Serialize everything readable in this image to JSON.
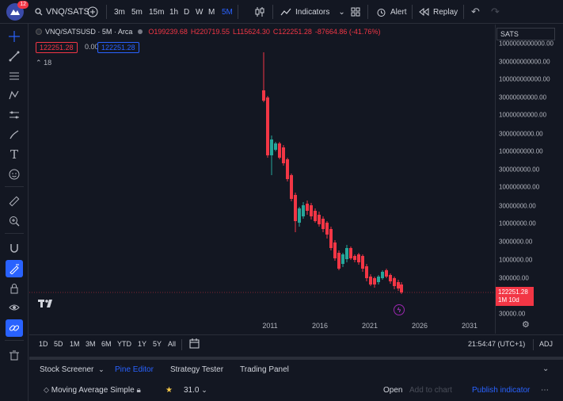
{
  "toolbar": {
    "notifications": "12",
    "symbol": "VNQ/SATS",
    "timeframes": [
      "3m",
      "5m",
      "15m",
      "1h",
      "D",
      "W",
      "M",
      "5M"
    ],
    "active_timeframe": "5M",
    "indicators_label": "Indicators",
    "alert_label": "Alert",
    "replay_label": "Replay"
  },
  "legend": {
    "title": "VNQ/SATSUSD · 5M · Arca",
    "open": "O199239.68",
    "high": "H220719.55",
    "low": "L115624.30",
    "close": "C122251.28",
    "change": "-87664.86 (-41.76%)",
    "sell_price": "122251.28",
    "spread": "0.00",
    "buy_price": "122251.28",
    "indicator_count": "18",
    "scale_label": "SATS"
  },
  "yaxis": {
    "ticks": [
      "1000000000000.00",
      "300000000000.00",
      "100000000000.00",
      "30000000000.00",
      "10000000000.00",
      "3000000000.00",
      "1000000000.00",
      "300000000.00",
      "100000000.00",
      "30000000.00",
      "10000000.00",
      "3000000.00",
      "1000000.00",
      "300000.00",
      "30000.00"
    ],
    "last_price": "122251.28",
    "countdown": "1M 10d"
  },
  "xaxis": {
    "ticks": [
      "2011",
      "2016",
      "2021",
      "2026",
      "2031"
    ]
  },
  "chart_data": {
    "type": "candlestick",
    "scale": "log",
    "up_color": "#26a69a",
    "down_color": "#f23645",
    "last_price": 122251.28
  },
  "rangebar": {
    "ranges": [
      "1D",
      "5D",
      "1M",
      "3M",
      "6M",
      "YTD",
      "1Y",
      "5Y",
      "All"
    ],
    "clock": "21:54:47 (UTC+1)",
    "adj": "ADJ"
  },
  "bottom": {
    "tabs": [
      "Stock Screener",
      "Pine Editor",
      "Strategy Tester",
      "Trading Panel"
    ],
    "active_tab": "Pine Editor",
    "script_name": "Moving Average Simple",
    "version": "31.0",
    "open_label": "Open",
    "add_to_chart": "Add to chart",
    "publish": "Publish indicator"
  },
  "colors": {
    "background": "#131722",
    "accent": "#2962ff",
    "down": "#f23645",
    "up": "#26a69a"
  },
  "icons": [
    "crosshair-icon",
    "trendline-icon",
    "fib-icon",
    "pattern-icon",
    "measure-icon",
    "brush-icon",
    "text-icon",
    "emoji-icon",
    "ruler-icon",
    "zoom-icon",
    "magnet-icon",
    "lock-drawing-icon",
    "lock-icon",
    "eye-icon",
    "link-icon",
    "trash-icon"
  ]
}
